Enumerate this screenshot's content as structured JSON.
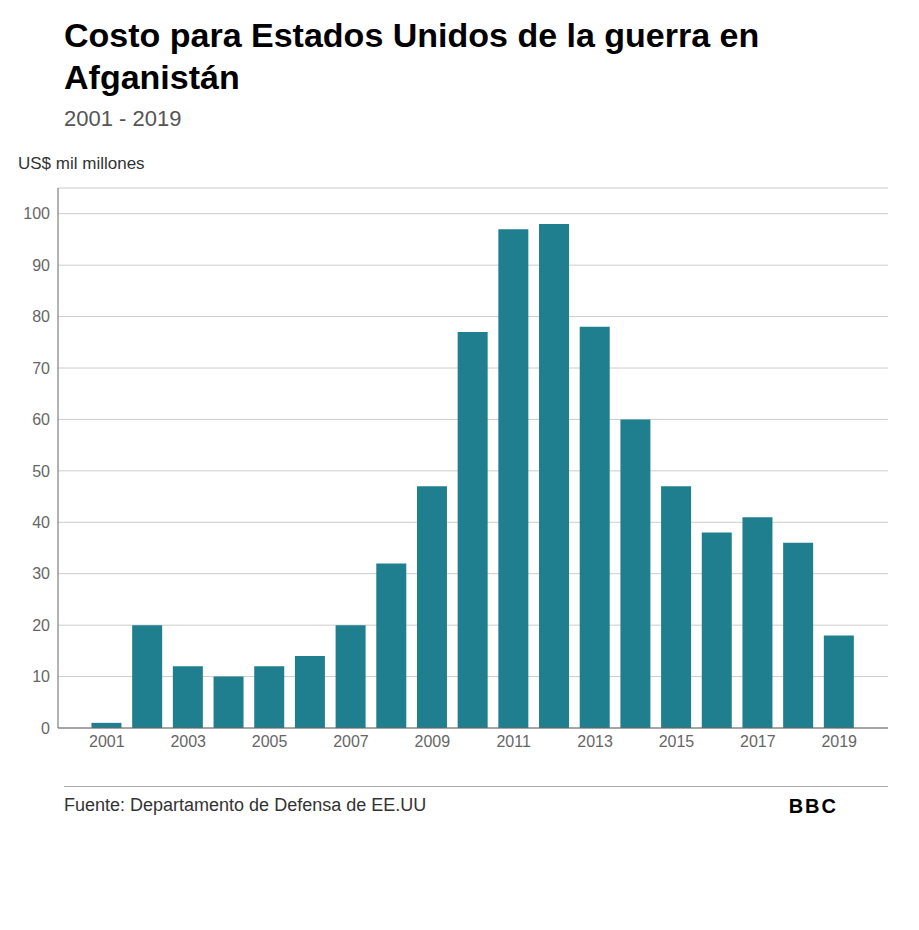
{
  "chart_data": {
    "type": "bar",
    "title": "Costo para Estados Unidos de la guerra en Afganistán",
    "subtitle": "2001 - 2019",
    "ylabel": "US$ mil millones",
    "x": [
      2001,
      2002,
      2003,
      2004,
      2005,
      2006,
      2007,
      2008,
      2009,
      2010,
      2011,
      2012,
      2013,
      2014,
      2015,
      2016,
      2017,
      2018,
      2019
    ],
    "values": [
      1,
      20,
      12,
      10,
      12,
      14,
      20,
      32,
      47,
      77,
      97,
      98,
      78,
      60,
      47,
      38,
      41,
      36,
      18
    ],
    "color": "#1f7f8e",
    "xlim": [
      1999.8,
      2020.2
    ],
    "xticks": [
      2001,
      2003,
      2005,
      2007,
      2009,
      2011,
      2013,
      2015,
      2017,
      2019
    ],
    "ylim": [
      0,
      105
    ],
    "yticks": [
      0,
      10,
      20,
      30,
      40,
      50,
      60,
      70,
      80,
      90,
      100
    ],
    "grid": true,
    "annotations": [
      "Fuente: Departamento de Defensa de EE.UU",
      "BBC"
    ]
  }
}
